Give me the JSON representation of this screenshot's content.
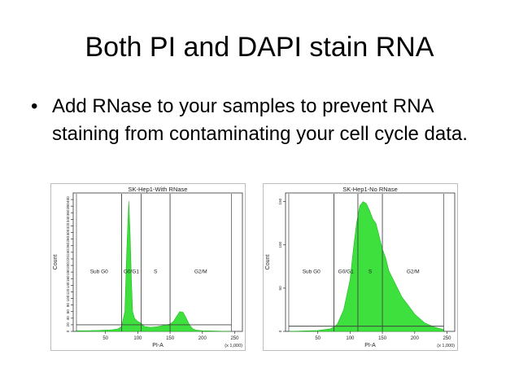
{
  "slide": {
    "title": "Both PI and DAPI stain RNA",
    "bullet_glyph": "•",
    "bullet": "Add RNase to your samples to prevent RNA staining from contaminating your cell cycle data."
  },
  "chart_data": [
    {
      "type": "area",
      "title": "SK-Hep1-With RNase",
      "xlabel": "PI-A",
      "ylabel": "Count",
      "x_scale_note": "(x 1,000)",
      "xlim": [
        0,
        262
      ],
      "ylim": [
        0,
        420
      ],
      "x_ticks": [
        50,
        100,
        150,
        200,
        250
      ],
      "y_ticks": [
        0,
        20,
        40,
        60,
        80,
        100,
        120,
        140,
        160,
        180,
        200,
        220,
        240,
        260,
        280,
        300,
        320,
        340,
        360,
        380,
        400
      ],
      "fill_color": "#3ee03e",
      "gates": [
        {
          "label": "Sub G0",
          "x_start": 5,
          "x_end": 75,
          "level": 20
        },
        {
          "label": "G0/G1",
          "x_start": 75,
          "x_end": 105,
          "level": 20
        },
        {
          "label": "S",
          "x_start": 105,
          "x_end": 150,
          "level": 20
        },
        {
          "label": "G2/M",
          "x_start": 150,
          "x_end": 245,
          "level": 20
        }
      ],
      "x": [
        5,
        20,
        40,
        60,
        70,
        75,
        80,
        83,
        86,
        88,
        90,
        92,
        95,
        100,
        105,
        110,
        120,
        130,
        140,
        150,
        155,
        160,
        165,
        170,
        175,
        180,
        185,
        190,
        200,
        220,
        245
      ],
      "y": [
        2,
        2,
        3,
        5,
        8,
        15,
        60,
        250,
        395,
        300,
        160,
        60,
        40,
        30,
        25,
        15,
        12,
        14,
        18,
        22,
        30,
        45,
        60,
        58,
        40,
        20,
        8,
        4,
        2,
        1,
        0
      ]
    },
    {
      "type": "area",
      "title": "SK-Hep1-No RNase",
      "xlabel": "PI-A",
      "ylabel": "Count",
      "x_scale_note": "(x 1,000)",
      "xlim": [
        0,
        262
      ],
      "ylim": [
        0,
        160
      ],
      "x_ticks": [
        50,
        100,
        150,
        200,
        250
      ],
      "y_ticks": [
        0,
        50,
        100,
        150
      ],
      "fill_color": "#3ee03e",
      "gates": [
        {
          "label": "Sub G0",
          "x_start": 5,
          "x_end": 75,
          "level": 6
        },
        {
          "label": "G0/G1",
          "x_start": 75,
          "x_end": 112,
          "level": 6
        },
        {
          "label": "S",
          "x_start": 112,
          "x_end": 150,
          "level": 6
        },
        {
          "label": "G2/M",
          "x_start": 150,
          "x_end": 245,
          "level": 6
        }
      ],
      "x": [
        5,
        50,
        70,
        80,
        90,
        100,
        105,
        110,
        115,
        120,
        125,
        130,
        135,
        140,
        145,
        150,
        155,
        160,
        170,
        180,
        190,
        200,
        215,
        230,
        245
      ],
      "y": [
        0,
        1,
        3,
        8,
        25,
        60,
        95,
        125,
        145,
        150,
        148,
        140,
        130,
        125,
        110,
        95,
        85,
        70,
        55,
        40,
        30,
        20,
        10,
        5,
        2
      ]
    }
  ]
}
